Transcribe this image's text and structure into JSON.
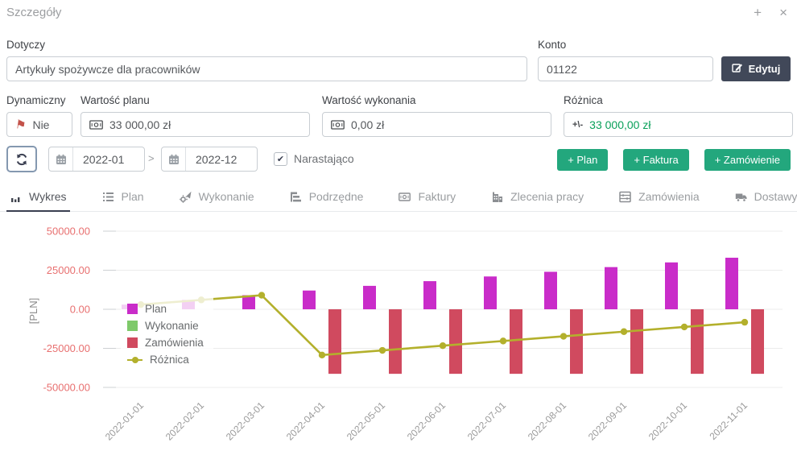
{
  "header": {
    "title": "Szczegóły",
    "collapse_icon": "+",
    "close_icon": "×"
  },
  "form": {
    "dotyczy": {
      "label": "Dotyczy",
      "value": "Artykuły spożywcze dla pracowników"
    },
    "konto": {
      "label": "Konto",
      "value": "01122"
    },
    "edit_button": "Edytuj",
    "dynamiczny": {
      "label": "Dynamiczny",
      "value": "Nie"
    },
    "wartosc_planu": {
      "label": "Wartość planu",
      "value": "33 000,00 zł"
    },
    "wartosc_wykonania": {
      "label": "Wartość wykonania",
      "value": "0,00 zł"
    },
    "roznica": {
      "label": "Różnica",
      "value": "33 000,00 zł",
      "icon_text": "+\\-"
    }
  },
  "toolbar": {
    "date_from": "2022-01",
    "date_separator": ">",
    "date_to": "2022-12",
    "checkbox_label": "Narastająco",
    "checkbox_checked": true,
    "check_glyph": "✔",
    "buttons": [
      {
        "label": "+ Plan"
      },
      {
        "label": "+ Faktura"
      },
      {
        "label": "+ Zamówienie"
      }
    ]
  },
  "tabs": [
    {
      "label": "Wykres",
      "icon": "chart",
      "active": true
    },
    {
      "label": "Plan",
      "icon": "list",
      "active": false
    },
    {
      "label": "Wykonanie",
      "icon": "gear-arrow",
      "active": false
    },
    {
      "label": "Podrzędne",
      "icon": "hierarchy",
      "active": false
    },
    {
      "label": "Faktury",
      "icon": "banknote",
      "active": false
    },
    {
      "label": "Zlecenia pracy",
      "icon": "building",
      "active": false
    },
    {
      "label": "Zamówienia",
      "icon": "abacus",
      "active": false
    },
    {
      "label": "Dostawy",
      "icon": "truck",
      "active": false
    }
  ],
  "colors": {
    "accent_green_button": "#23a77d",
    "dark_button": "#414859",
    "roznica_value_green": "#0aa05a",
    "ytick_red": "#e87070",
    "active_tab_underline": "#3a3f51"
  },
  "chart_data": {
    "type": "bar",
    "title": "",
    "xlabel": "",
    "ylabel": "[PLN]",
    "ylim": [
      -50000,
      50000
    ],
    "grid": true,
    "legend_position": "inside-left",
    "yticks": [
      50000,
      25000,
      0,
      -25000,
      -50000
    ],
    "ytick_labels": [
      "50000.00",
      "25000.00",
      "0.00",
      "-25000.00",
      "-50000.00"
    ],
    "categories": [
      "2022-01-01",
      "2022-02-01",
      "2022-03-01",
      "2022-04-01",
      "2022-05-01",
      "2022-06-01",
      "2022-07-01",
      "2022-08-01",
      "2022-09-01",
      "2022-10-01",
      "2022-11-01"
    ],
    "series": [
      {
        "name": "Plan",
        "kind": "bar",
        "color": "#c92cc9",
        "values": [
          3000,
          6000,
          9000,
          12000,
          15000,
          18000,
          21000,
          24000,
          27000,
          30000,
          33000
        ]
      },
      {
        "name": "Wykonanie",
        "kind": "bar",
        "color": "#7ec96a",
        "values": [
          0,
          0,
          0,
          0,
          0,
          0,
          0,
          0,
          0,
          0,
          0
        ]
      },
      {
        "name": "Zamówienia",
        "kind": "bar",
        "color": "#d04a5f",
        "values": [
          0,
          0,
          0,
          -41300,
          -41300,
          -41300,
          -41300,
          -41300,
          -41300,
          -41300,
          -41300
        ]
      },
      {
        "name": "Różnica",
        "kind": "line",
        "color": "#b3b02c",
        "values": [
          3000,
          6000,
          9000,
          -29300,
          -26300,
          -23300,
          -20300,
          -17300,
          -14300,
          -11300,
          -8300
        ]
      }
    ]
  }
}
